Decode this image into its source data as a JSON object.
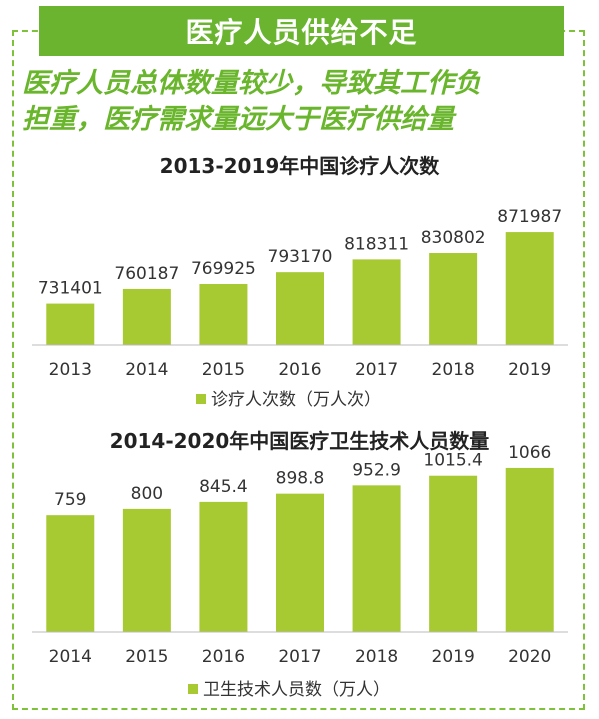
{
  "header": {
    "banner_title": "医疗人员供给不足",
    "subtitle_line1": "医疗人员总体数量较少，导致其工作负",
    "subtitle_line2": "担重，医疗需求量远大于医疗供给量"
  },
  "colors": {
    "bar": "#a7c932",
    "banner": "#6ab42f",
    "subtitle": "#69b52c",
    "frame": "#7dc23a"
  },
  "chart_data": [
    {
      "type": "bar",
      "title": "2013-2019年中国诊疗人次数",
      "categories": [
        "2013",
        "2014",
        "2015",
        "2016",
        "2017",
        "2018",
        "2019"
      ],
      "series": [
        {
          "name": "诊疗人次数（万人次）",
          "values": [
            731401,
            760187,
            769925,
            793170,
            818311,
            830802,
            871987
          ]
        }
      ],
      "value_labels": [
        "731401",
        "760187",
        "769925",
        "793170",
        "818311",
        "830802",
        "871987"
      ],
      "ylim": [
        650000,
        880000
      ],
      "grid": false,
      "legend_position": "bottom-center"
    },
    {
      "type": "bar",
      "title": "2014-2020年中国医疗卫生技术人员数量",
      "categories": [
        "2014",
        "2015",
        "2016",
        "2017",
        "2018",
        "2019",
        "2020"
      ],
      "series": [
        {
          "name": "卫生技术人员数（万人）",
          "values": [
            759,
            800,
            845.4,
            898.8,
            952.9,
            1015.4,
            1066
          ]
        }
      ],
      "value_labels": [
        "759",
        "800",
        "845.4",
        "898.8",
        "952.9",
        "1015.4",
        "1066"
      ],
      "ylim": [
        0,
        1150
      ],
      "grid": false,
      "legend_position": "bottom-center"
    }
  ]
}
